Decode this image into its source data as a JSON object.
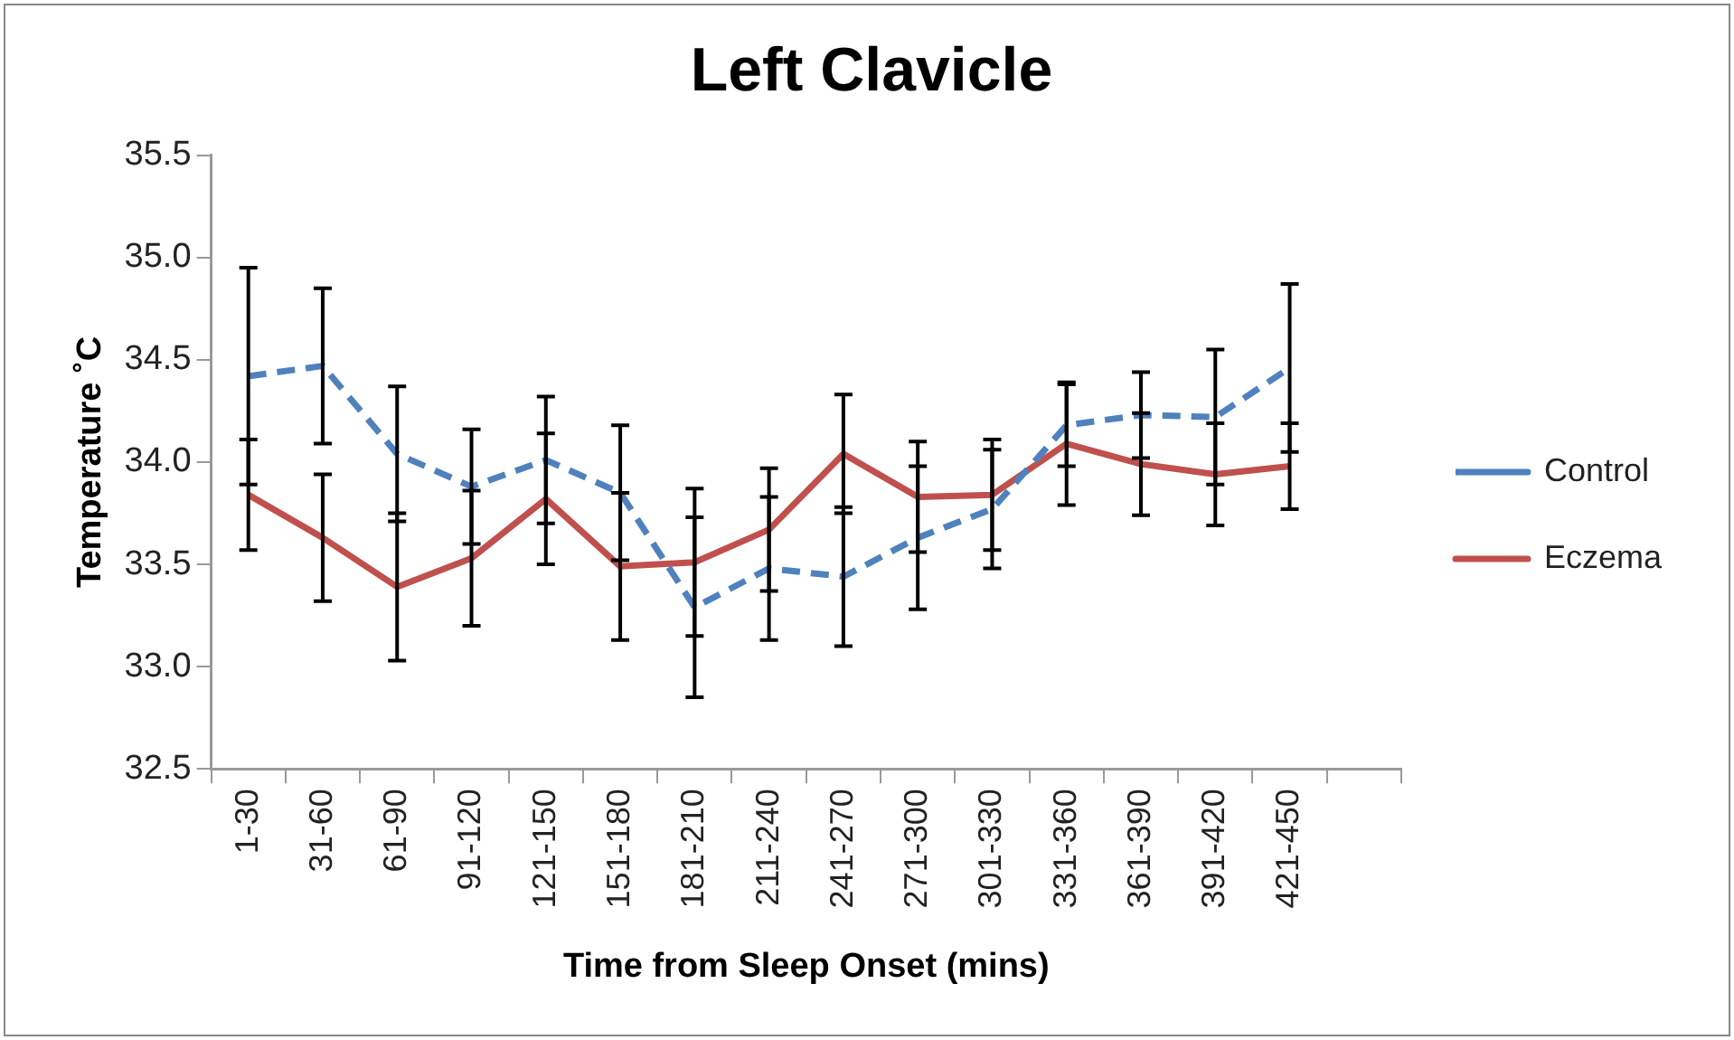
{
  "chart_data": {
    "type": "line",
    "title": "Left Clavicle",
    "xlabel": "Time from Sleep Onset (mins)",
    "ylabel": "Temperature ˚C",
    "categories": [
      "1-30",
      "31-60",
      "61-90",
      "91-120",
      "121-150",
      "151-180",
      "181-210",
      "211-240",
      "241-270",
      "271-300",
      "301-330",
      "331-360",
      "361-390",
      "391-420",
      "421-450",
      null
    ],
    "series": [
      {
        "name": "Control",
        "color": "#4f81bd",
        "line_style": "dashed",
        "values": [
          34.42,
          34.47,
          34.04,
          33.88,
          34.01,
          33.85,
          33.29,
          33.48,
          33.44,
          33.63,
          33.77,
          34.18,
          34.23,
          34.22,
          34.46,
          null
        ],
        "errors": [
          0.53,
          0.38,
          0.33,
          0.28,
          0.31,
          0.33,
          0.44,
          0.35,
          0.34,
          0.35,
          0.29,
          0.2,
          0.21,
          0.33,
          0.41,
          null
        ]
      },
      {
        "name": "Eczema",
        "color": "#c0504d",
        "line_style": "solid",
        "values": [
          33.84,
          33.63,
          33.39,
          33.53,
          33.82,
          33.49,
          33.51,
          33.67,
          34.04,
          33.83,
          33.84,
          34.09,
          33.99,
          33.94,
          33.98,
          null
        ],
        "errors": [
          0.27,
          0.31,
          0.36,
          0.33,
          0.32,
          0.36,
          0.36,
          0.3,
          0.29,
          0.27,
          0.27,
          0.3,
          0.25,
          0.25,
          0.21,
          null
        ]
      }
    ],
    "ylim": [
      32.5,
      35.5
    ],
    "yticks": [
      {
        "value": 32.5,
        "label": "32.5"
      },
      {
        "value": 33,
        "label": "33.0"
      },
      {
        "value": 33.5,
        "label": "33.5"
      },
      {
        "value": 34,
        "label": "34.0"
      },
      {
        "value": 34.5,
        "label": "34.5"
      },
      {
        "value": 35,
        "label": "35.0"
      },
      {
        "value": 35.5,
        "label": "35.5"
      }
    ],
    "grid": false,
    "legend": "right",
    "marker": "none"
  }
}
